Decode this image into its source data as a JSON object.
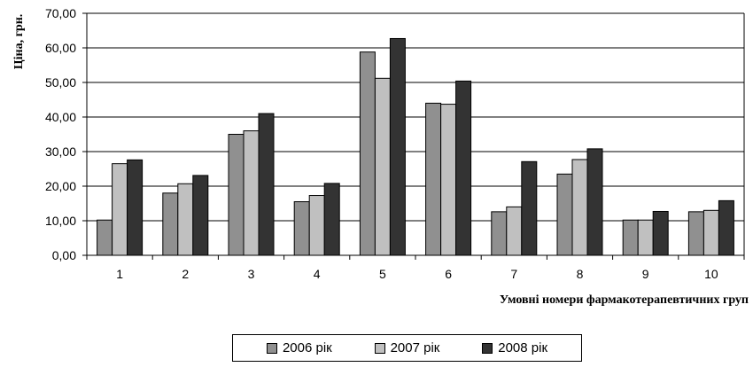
{
  "chart_data": {
    "type": "bar",
    "ylabel": "Ціна, грн.",
    "xlabel": "Умовні номери фармакотерапевтичних груп",
    "categories": [
      "1",
      "2",
      "3",
      "4",
      "5",
      "6",
      "7",
      "8",
      "9",
      "10"
    ],
    "yticks": [
      "0,00",
      "10,00",
      "20,00",
      "30,00",
      "40,00",
      "50,00",
      "60,00",
      "70,00"
    ],
    "ylim": [
      0,
      70
    ],
    "grid": true,
    "legend_position": "bottom",
    "series": [
      {
        "name": "2006 рік",
        "color": "#909090",
        "values": [
          10.2,
          18.0,
          35.0,
          15.5,
          58.8,
          44.0,
          12.6,
          23.5,
          10.2,
          12.6
        ]
      },
      {
        "name": "2007 рік",
        "color": "#c0c0c0",
        "values": [
          26.5,
          20.7,
          36.0,
          17.3,
          51.2,
          43.7,
          14.0,
          27.7,
          10.2,
          13.0
        ]
      },
      {
        "name": "2008 рік",
        "color": "#333333",
        "values": [
          27.6,
          23.1,
          41.0,
          20.8,
          62.7,
          50.4,
          27.1,
          30.8,
          12.7,
          15.8
        ]
      }
    ]
  }
}
